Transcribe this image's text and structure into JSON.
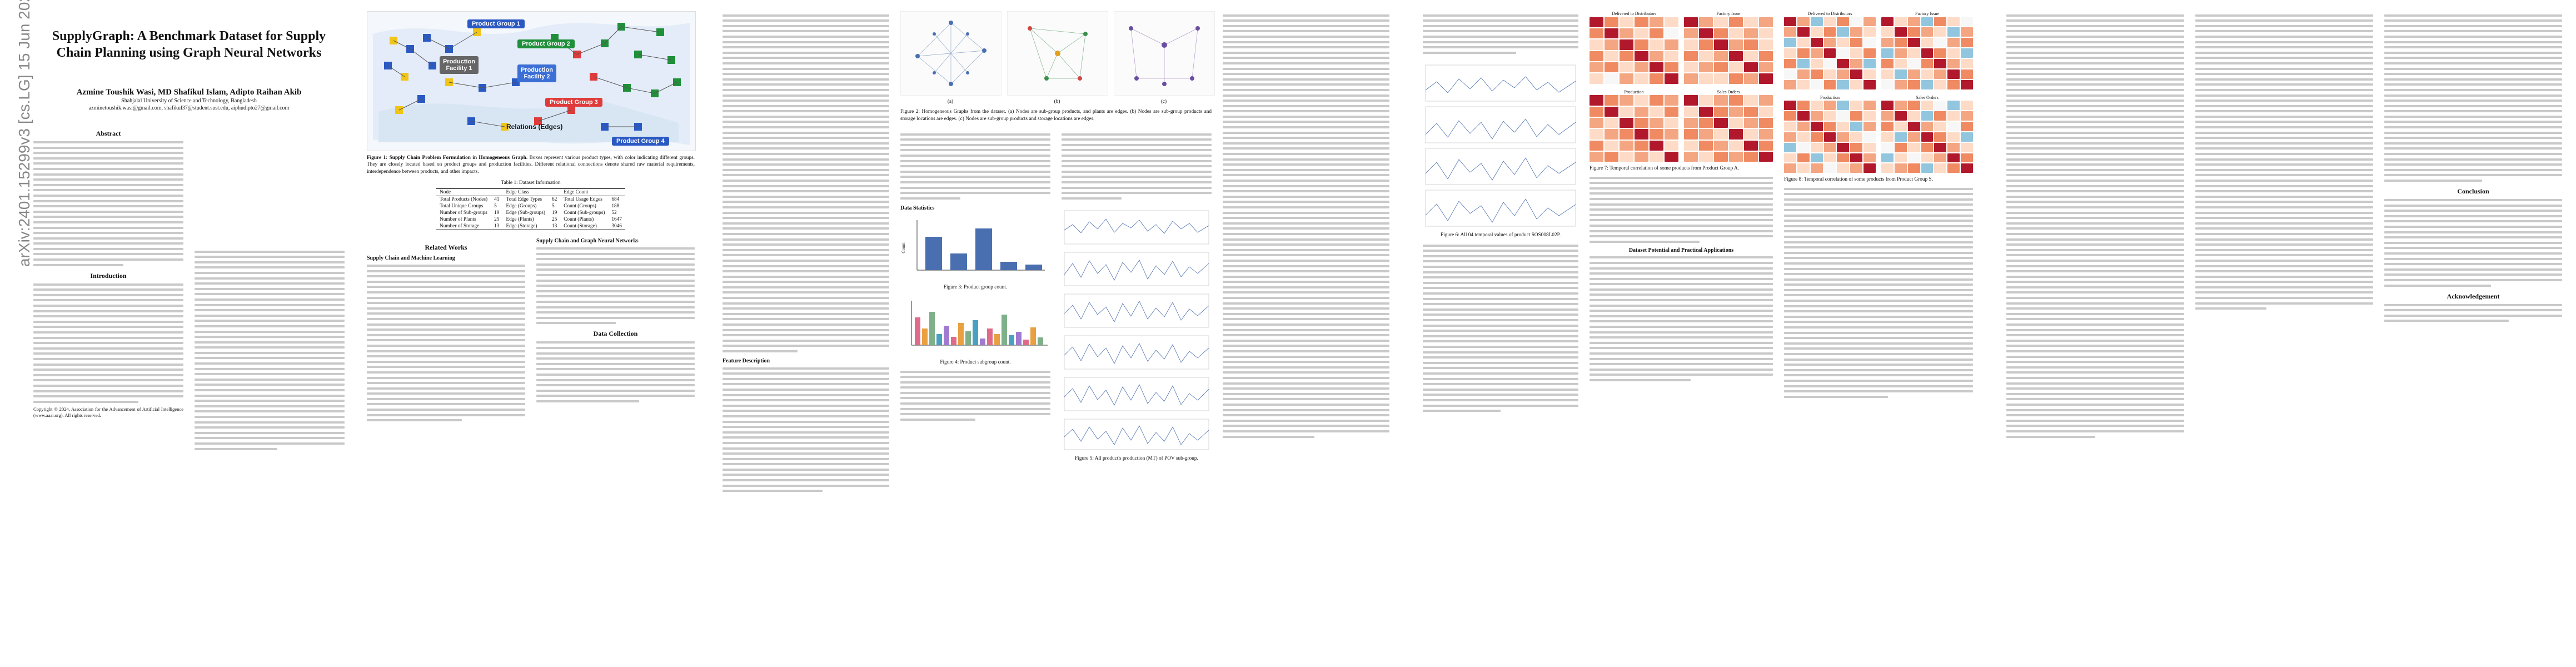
{
  "arxiv_id": "arXiv:2401.15299v3  [cs.LG]  15 Jun 2025",
  "paper": {
    "title": "SupplyGraph: A Benchmark Dataset for Supply Chain Planning using Graph Neural Networks",
    "authors": "Azmine Toushik Wasi, MD Shafikul Islam, Adipto Raihan Akib",
    "affiliation": "Shahjalal University of Science and Technology, Bangladesh",
    "emails": "azminetoushik.wasi@gmail.com, shafikul37@student.sust.edu, aiphudipto27@gmail.com",
    "copyright": "Copyright © 2024, Association for the Advancement of Artificial Intelligence (www.aaai.org). All rights reserved."
  },
  "sections": {
    "abstract": "Abstract",
    "introduction": "Introduction",
    "related_works": "Related Works",
    "sc_ml": "Supply Chain and Machine Learning",
    "sc_gnn": "Supply Chain and Graph Neural Networks",
    "data_collection": "Data Collection",
    "feature_description": "Feature Description",
    "data_statistics": "Data Statistics",
    "potential": "Dataset Potential and Practical Applications",
    "conclusion": "Conclusion",
    "acknowledgement": "Acknowledgement"
  },
  "figure1": {
    "labels": {
      "product_group_1": "Product Group 1",
      "production_facility_1": "Production Facility 1",
      "production_facility_2": "Production Facility 2",
      "product_group_2": "Product Group 2",
      "product_group_3": "Product Group 3",
      "product_group_4": "Product Group 4",
      "relations": "Relations (Edges)"
    },
    "caption_bold": "Figure 1: Supply Chain Problem Formulation in Homogeneous Graph.",
    "caption": "Boxes represent various product types, with color indicating different groups. They are closely located based on product groups and production facilities. Different relational connections denote shared raw material requirements, interdependence between products, and other impacts."
  },
  "table1": {
    "caption": "Table 1: Dataset Information",
    "headers": [
      "Node",
      "",
      "Edge Class",
      "",
      "Edge Count",
      ""
    ],
    "rows": [
      [
        "Total Products (Nodes)",
        "41",
        "Total Edge Types",
        "62",
        "Total Usage Edges",
        "684"
      ],
      [
        "Total Unique Groups",
        "5",
        "Edge (Groups)",
        "5",
        "Count (Groups)",
        "188"
      ],
      [
        "Number of Sub-groups",
        "19",
        "Edge (Sub-groups)",
        "19",
        "Count (Sub-groups)",
        "52"
      ],
      [
        "Number of Plants",
        "25",
        "Edge (Plants)",
        "25",
        "Count (Plants)",
        "1647"
      ],
      [
        "Number of Storage",
        "13",
        "Edge (Storage)",
        "13",
        "Count (Storage)",
        "3046"
      ]
    ]
  },
  "figure2": {
    "sub": [
      "(a)",
      "(b)",
      "(c)"
    ],
    "caption": "Figure 2: Homogeneous Graphs from the dataset. (a) Nodes are sub-group products, and plants are edges. (b) Nodes are sub-group products and storage locations are edges. (c) Nodes are sub-group products and storage locations are edges."
  },
  "figure3": {
    "caption": "Figure 3: Product group count.",
    "ylabel": "Count"
  },
  "figure4": {
    "caption": "Figure 4: Product subgroup count."
  },
  "figure5": {
    "caption": "Figure 5: All product's production (MT) of POV sub-group."
  },
  "figure6": {
    "caption": "Figure 6: All 04 temporal values of product SOS008L02P."
  },
  "figure7": {
    "caption": "Figure 7: Temporal correlation of some products from Product Group A.",
    "panels": [
      "Delivered to Distributors",
      "Factory Issue",
      "Production",
      "Sales Orders"
    ]
  },
  "figure8": {
    "caption": "Figure 8: Temporal correlation of some products from Product Group S.",
    "panels": [
      "Delivered to Distributors",
      "Factory Issue",
      "Production",
      "Sales Orders"
    ]
  }
}
